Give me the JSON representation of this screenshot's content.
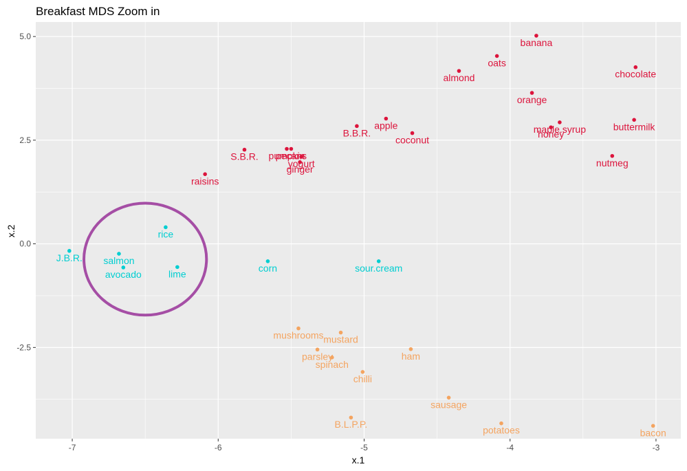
{
  "chart_data": {
    "type": "scatter",
    "title": "Breakfast MDS Zoom in",
    "xlabel": "x.1",
    "ylabel": "x.2",
    "xlim": [
      -7.25,
      -2.83
    ],
    "ylim": [
      -4.7,
      5.35
    ],
    "x_ticks": [
      -7,
      -6,
      -5,
      -4,
      -3
    ],
    "x_tick_labels": [
      "-7",
      "-6",
      "-5",
      "-4",
      "-3"
    ],
    "y_ticks": [
      5.0,
      2.5,
      0.0,
      -2.5
    ],
    "y_tick_labels": [
      "5.0",
      "2.5",
      "0.0",
      "-2.5"
    ],
    "grid": true,
    "legend": "none",
    "groups": {
      "red": "#dc143c",
      "cyan": "#00ced1",
      "orange": "#f4a460"
    },
    "points": [
      {
        "label": "banana",
        "x": -3.82,
        "y": 5.02,
        "group": "red"
      },
      {
        "label": "oats",
        "x": -4.09,
        "y": 4.53,
        "group": "red"
      },
      {
        "label": "almond",
        "x": -4.35,
        "y": 4.17,
        "group": "red"
      },
      {
        "label": "chocolate",
        "x": -3.14,
        "y": 4.26,
        "group": "red"
      },
      {
        "label": "orange",
        "x": -3.85,
        "y": 3.64,
        "group": "red"
      },
      {
        "label": "apple",
        "x": -4.85,
        "y": 3.02,
        "group": "red"
      },
      {
        "label": "B.B.R.",
        "x": -5.05,
        "y": 2.84,
        "group": "red"
      },
      {
        "label": "coconut",
        "x": -4.67,
        "y": 2.67,
        "group": "red"
      },
      {
        "label": "honey",
        "x": -3.72,
        "y": 2.81,
        "group": "red"
      },
      {
        "label": "maple.syrup",
        "x": -3.66,
        "y": 2.93,
        "group": "red"
      },
      {
        "label": "buttermilk",
        "x": -3.15,
        "y": 2.99,
        "group": "red"
      },
      {
        "label": "nutmeg",
        "x": -3.3,
        "y": 2.12,
        "group": "red"
      },
      {
        "label": "S.B.R.",
        "x": -5.82,
        "y": 2.27,
        "group": "red"
      },
      {
        "label": "pumpkin",
        "x": -5.53,
        "y": 2.29,
        "group": "red"
      },
      {
        "label": "pecans",
        "x": -5.5,
        "y": 2.29,
        "group": "red"
      },
      {
        "label": "yogurt",
        "x": -5.43,
        "y": 2.1,
        "group": "red"
      },
      {
        "label": "ginger",
        "x": -5.44,
        "y": 1.97,
        "group": "red"
      },
      {
        "label": "raisins",
        "x": -6.09,
        "y": 1.68,
        "group": "red"
      },
      {
        "label": "rice",
        "x": -6.36,
        "y": 0.4,
        "group": "cyan"
      },
      {
        "label": "J.B.R.",
        "x": -7.02,
        "y": -0.17,
        "group": "cyan"
      },
      {
        "label": "salmon",
        "x": -6.68,
        "y": -0.24,
        "group": "cyan"
      },
      {
        "label": "avocado",
        "x": -6.65,
        "y": -0.57,
        "group": "cyan"
      },
      {
        "label": "lime",
        "x": -6.28,
        "y": -0.56,
        "group": "cyan"
      },
      {
        "label": "corn",
        "x": -5.66,
        "y": -0.42,
        "group": "cyan"
      },
      {
        "label": "sour.cream",
        "x": -4.9,
        "y": -0.42,
        "group": "cyan"
      },
      {
        "label": "mushrooms",
        "x": -5.45,
        "y": -2.04,
        "group": "orange"
      },
      {
        "label": "mustard",
        "x": -5.16,
        "y": -2.14,
        "group": "orange"
      },
      {
        "label": "ham",
        "x": -4.68,
        "y": -2.54,
        "group": "orange"
      },
      {
        "label": "parsley",
        "x": -5.32,
        "y": -2.55,
        "group": "orange"
      },
      {
        "label": "spinach",
        "x": -5.22,
        "y": -2.74,
        "group": "orange"
      },
      {
        "label": "chilli",
        "x": -5.01,
        "y": -3.09,
        "group": "orange"
      },
      {
        "label": "sausage",
        "x": -4.42,
        "y": -3.71,
        "group": "orange"
      },
      {
        "label": "B.L.P.P.",
        "x": -5.09,
        "y": -4.19,
        "group": "orange"
      },
      {
        "label": "potatoes",
        "x": -4.06,
        "y": -4.33,
        "group": "orange"
      },
      {
        "label": "bacon",
        "x": -3.02,
        "y": -4.39,
        "group": "orange"
      }
    ],
    "annotations": [
      {
        "type": "ellipse",
        "color": "#a54ea5",
        "cx": -6.5,
        "cy": -0.37,
        "rx": 0.42,
        "ry": 1.35
      }
    ]
  }
}
